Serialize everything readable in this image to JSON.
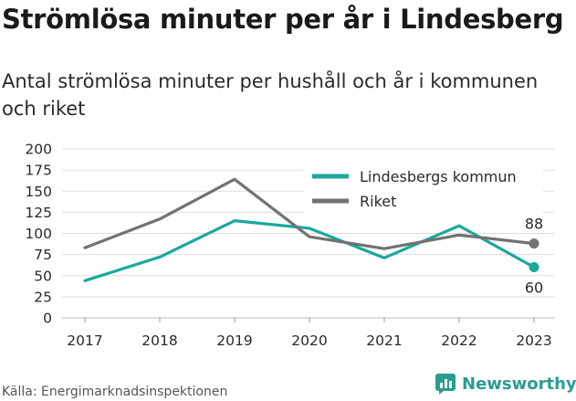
{
  "header": {
    "title": "Strömlösa minuter per år i Lindesberg",
    "subtitle": "Antal strömlösa minuter per hushåll och år i kommunen och riket"
  },
  "footer": {
    "source": "Källa: Energimarknadsinspektionen",
    "brand": "Newsworthy",
    "brand_icon": "newsworthy-logo-icon"
  },
  "colors": {
    "lindesberg": "#1ba89c",
    "riket": "#727272",
    "grid": "#dddddd",
    "text": "#2a2a2a"
  },
  "chart_data": {
    "type": "line",
    "categories": [
      "2017",
      "2018",
      "2019",
      "2020",
      "2021",
      "2022",
      "2023"
    ],
    "series": [
      {
        "name": "Lindesbergs kommun",
        "values": [
          44,
          72,
          115,
          106,
          71,
          109,
          60
        ],
        "end_label": "60"
      },
      {
        "name": "Riket",
        "values": [
          83,
          117,
          164,
          96,
          82,
          98,
          88
        ],
        "end_label": "88"
      }
    ],
    "ylim": [
      0,
      200
    ],
    "yticks": [
      0,
      25,
      50,
      75,
      100,
      125,
      150,
      175,
      200
    ],
    "grid": true,
    "legend": "top-right"
  }
}
